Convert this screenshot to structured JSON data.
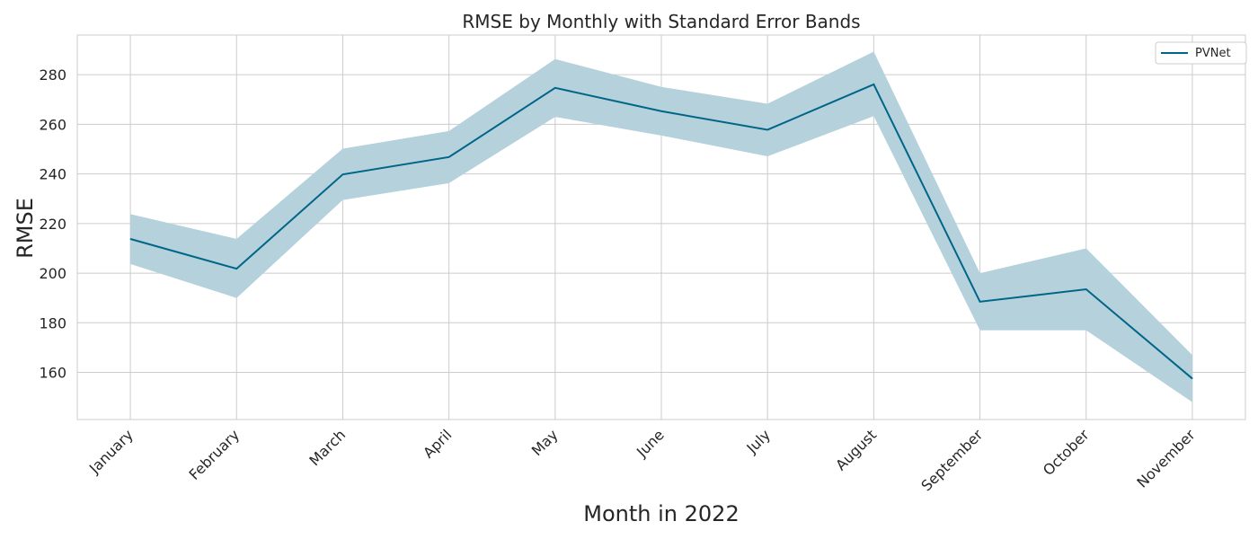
{
  "chart_data": {
    "type": "line",
    "title": "RMSE by Monthly with Standard Error Bands",
    "xlabel": "Month in 2022",
    "ylabel": "RMSE",
    "categories": [
      "January",
      "February",
      "March",
      "April",
      "May",
      "June",
      "July",
      "August",
      "September",
      "October",
      "November"
    ],
    "x_positions": [
      1,
      2,
      3,
      4,
      5,
      6,
      7,
      8,
      9,
      10,
      11
    ],
    "series": [
      {
        "name": "PVNet",
        "values": [
          213.8,
          201.8,
          239.8,
          246.8,
          274.7,
          265.3,
          257.8,
          276.1,
          188.5,
          193.5,
          157.5
        ],
        "lower": [
          203.7,
          190.0,
          229.5,
          236.3,
          263.0,
          255.5,
          247.1,
          263.3,
          177.0,
          177.0,
          148.0
        ],
        "upper": [
          223.8,
          213.8,
          250.2,
          257.3,
          286.3,
          275.1,
          268.3,
          289.3,
          200.0,
          210.0,
          167.0
        ],
        "color": "#006688",
        "band_color": "#b4d1dc"
      }
    ],
    "ylim": [
      141,
      296
    ],
    "yticks": [
      160,
      180,
      200,
      220,
      240,
      260,
      280
    ],
    "grid": true,
    "legend": "top-right"
  }
}
